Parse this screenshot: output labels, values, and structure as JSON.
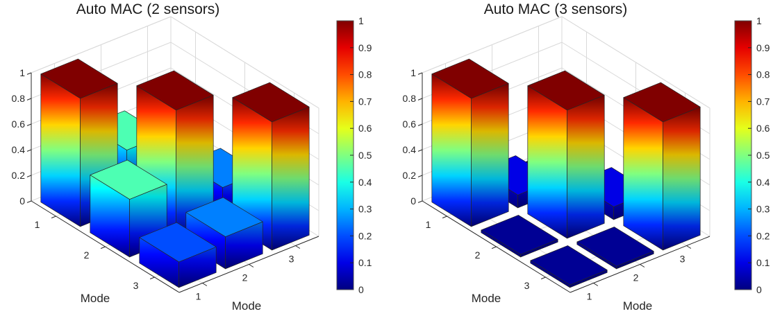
{
  "figure": {
    "background": "#ffffff",
    "colormap": "jet",
    "colormap_min_color": "#000080",
    "colormap_max_color": "#800000",
    "text_color": "#262626",
    "grid_color": "#d9d9d9",
    "bar_edge_color": "#262626",
    "colorbar_border_color": "#4d4d4d"
  },
  "chart_data": [
    {
      "type": "bar",
      "subtype": "bar3d-matrix",
      "title": "Auto MAC (2 sensors)",
      "xlabel": "Mode",
      "ylabel": "Mode",
      "x_ticks": [
        "1",
        "2",
        "3"
      ],
      "y_ticks": [
        "1",
        "2",
        "3"
      ],
      "z_ticks": [
        "0",
        "0.2",
        "0.4",
        "0.6",
        "0.8",
        "1"
      ],
      "zlim": [
        0,
        1
      ],
      "matrix_rows": [
        "1",
        "2",
        "3"
      ],
      "matrix_cols": [
        "1",
        "2",
        "3"
      ],
      "matrix": [
        [
          1.0,
          0.45,
          0.2
        ],
        [
          0.45,
          1.0,
          0.25
        ],
        [
          0.2,
          0.25,
          1.0
        ]
      ],
      "colorbar": {
        "min": 0,
        "max": 1,
        "tick_labels": [
          "1",
          "0.9",
          "0.8",
          "0.7",
          "0.6",
          "0.5",
          "0.4",
          "0.3",
          "0.2",
          "0.1",
          "0"
        ],
        "labels_clipped": true
      }
    },
    {
      "type": "bar",
      "subtype": "bar3d-matrix",
      "title": "Auto MAC (3 sensors)",
      "xlabel": "Mode",
      "ylabel": "Mode",
      "x_ticks": [
        "1",
        "2",
        "3"
      ],
      "y_ticks": [
        "1",
        "2",
        "3"
      ],
      "z_ticks": [
        "0",
        "0.2",
        "0.4",
        "0.6",
        "0.8",
        "1"
      ],
      "zlim": [
        0,
        1
      ],
      "matrix_rows": [
        "1",
        "2",
        "3"
      ],
      "matrix_cols": [
        "1",
        "2",
        "3"
      ],
      "matrix": [
        [
          1.0,
          0.1,
          0.02
        ],
        [
          0.02,
          1.0,
          0.1
        ],
        [
          0.02,
          0.02,
          1.0
        ]
      ],
      "colorbar": {
        "min": 0,
        "max": 1,
        "tick_labels": [
          "1",
          "0.9",
          "0.8",
          "0.7",
          "0.6",
          "0.5",
          "0.4",
          "0.3",
          "0.2",
          "0.1",
          "0"
        ],
        "labels_clipped": false
      }
    }
  ]
}
